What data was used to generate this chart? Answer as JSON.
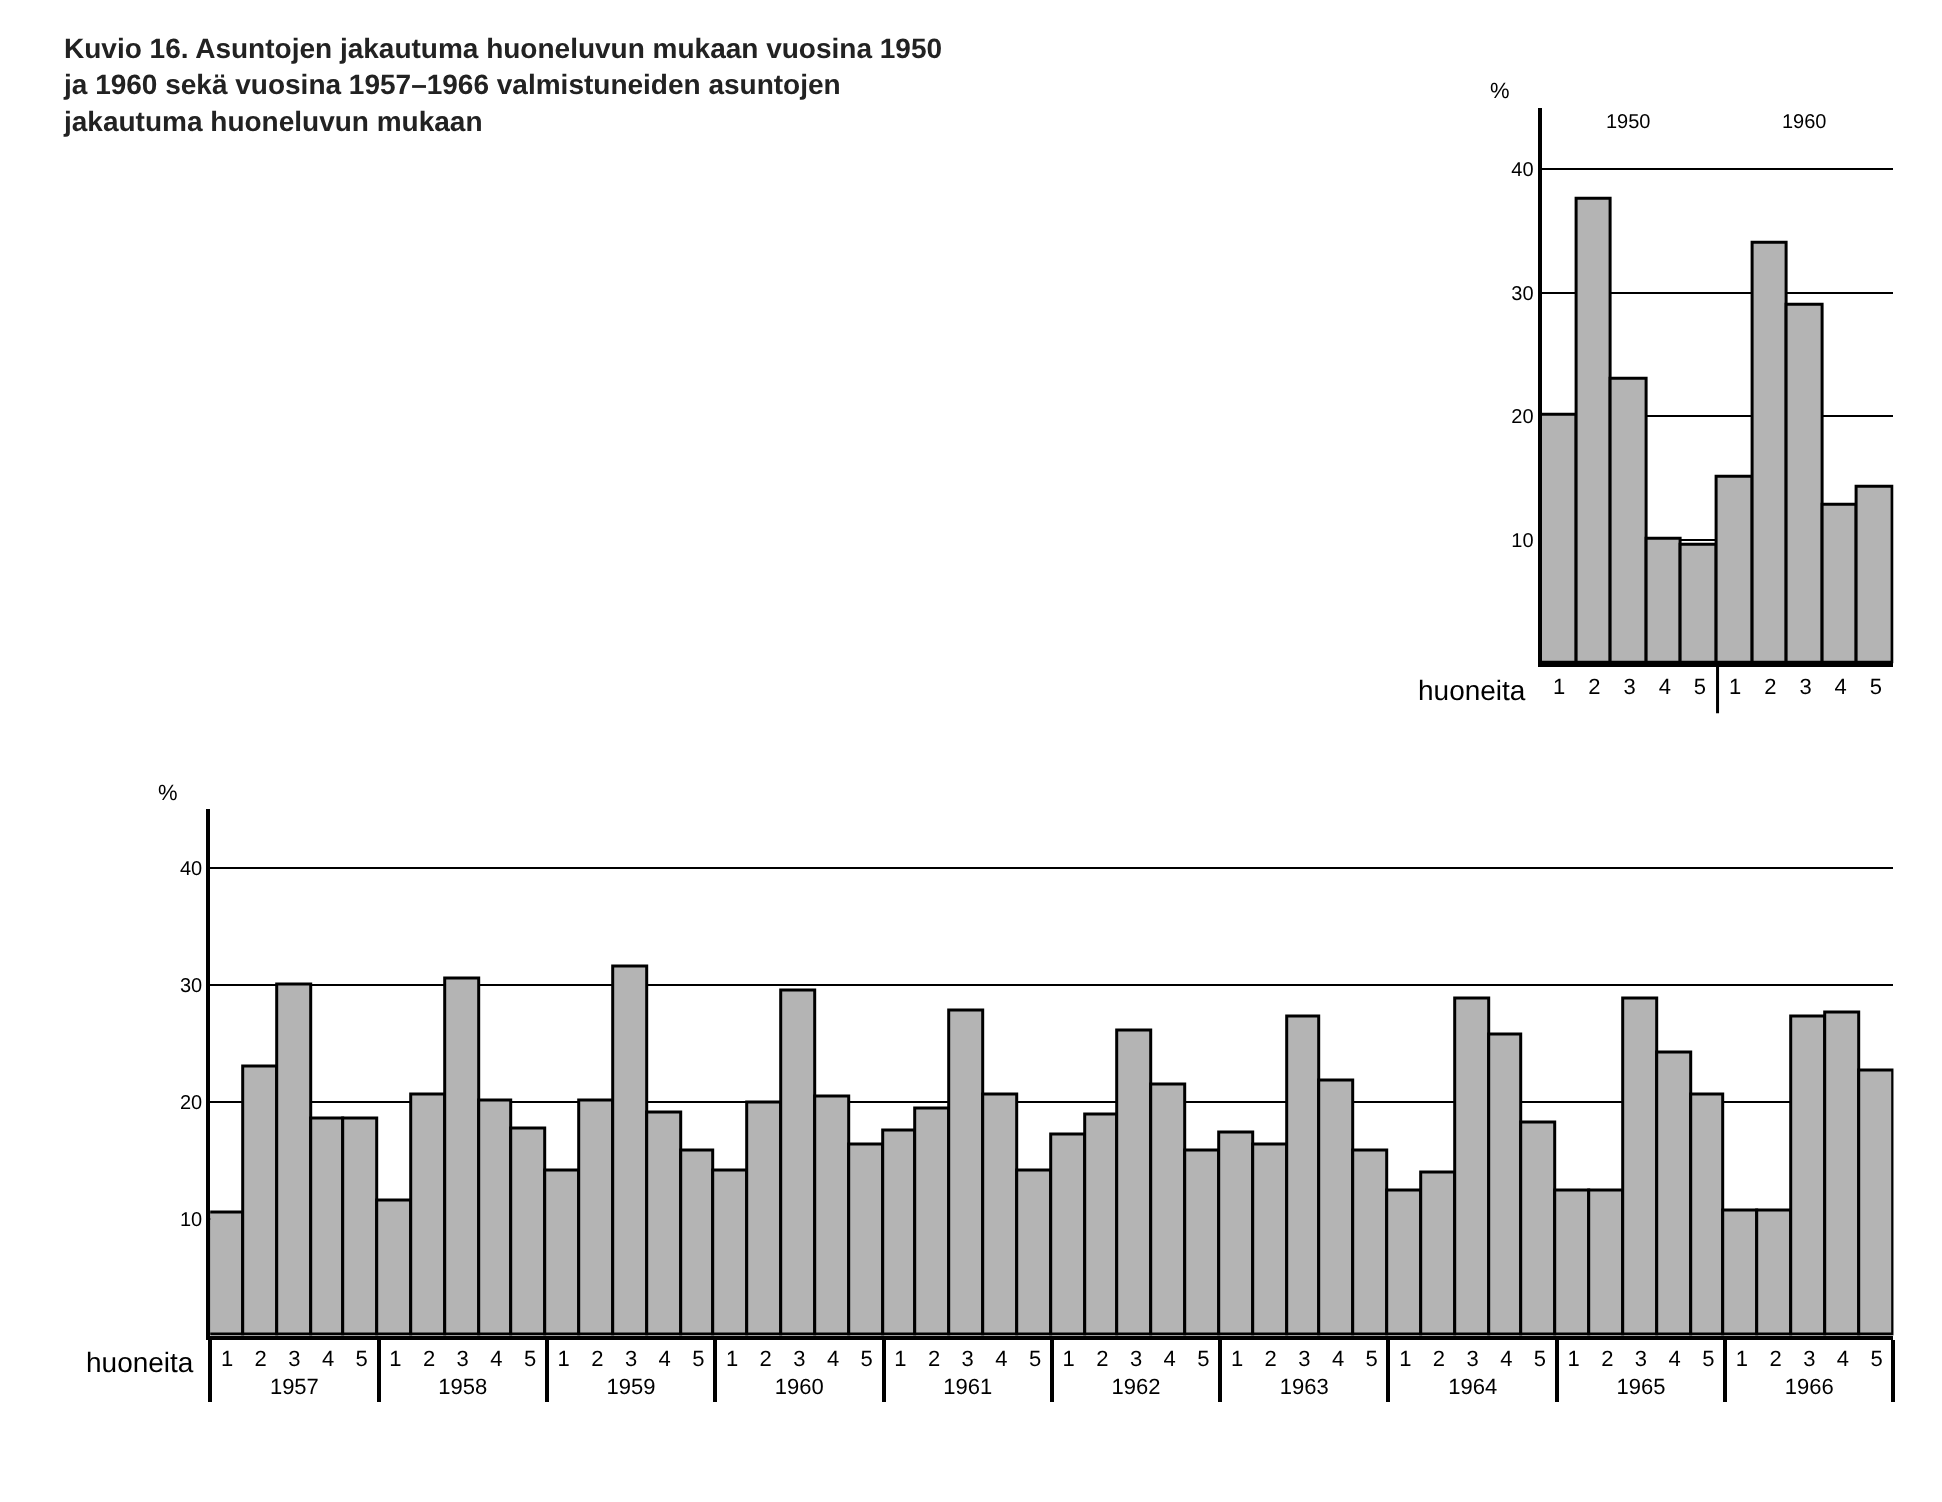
{
  "chart_data": [
    {
      "type": "bar",
      "ylabel": "%",
      "xlabel": "huoneita",
      "categories": [
        "1",
        "2",
        "3",
        "4",
        "5",
        "1",
        "2",
        "3",
        "4",
        "5"
      ],
      "values": [
        20,
        37.6,
        23,
        10,
        9.5,
        15,
        34,
        29,
        12.8,
        14.3
      ],
      "color": "#b4b4b4",
      "annotations": [
        "1950",
        "1960"
      ],
      "ylim": [
        0,
        45
      ],
      "yticks": [
        10,
        20,
        30,
        40
      ],
      "grid": "y"
    },
    {
      "type": "bar",
      "ylabel": "%",
      "xlabel": "huoneita",
      "categories": [
        "1",
        "2",
        "3",
        "4",
        "5",
        "1",
        "2",
        "3",
        "4",
        "5",
        "1",
        "2",
        "3",
        "4",
        "5",
        "1",
        "2",
        "3",
        "4",
        "5",
        "1",
        "2",
        "3",
        "4",
        "5",
        "1",
        "2",
        "3",
        "4",
        "5",
        "1",
        "2",
        "3",
        "4",
        "5",
        "1",
        "2",
        "3",
        "4",
        "5",
        "1",
        "2",
        "3",
        "4",
        "5",
        "1",
        "2",
        "3",
        "4",
        "5"
      ],
      "values": [
        10.5,
        23,
        30,
        18.5,
        18.5,
        11.5,
        20.5,
        30.5,
        20,
        17.7,
        14,
        20,
        31.5,
        19,
        15.7,
        14,
        19.8,
        29.5,
        20.3,
        16.2,
        17.5,
        19.3,
        27.8,
        20.5,
        14,
        17.2,
        18.9,
        26,
        21.4,
        15.7,
        17.3,
        16.3,
        27.2,
        21.8,
        15.7,
        12.4,
        13.8,
        28.7,
        25.7,
        18.2,
        12.3,
        12.3,
        28.7,
        24.2,
        20.6,
        10.7,
        10.7,
        27.2,
        27.6,
        22.6
      ],
      "color": "#b4b4b4",
      "annotations": [
        "1957",
        "1958",
        "1959",
        "1960",
        "1961",
        "1962",
        "1963",
        "1964",
        "1965",
        "1966"
      ],
      "ylim": [
        0,
        45
      ],
      "yticks": [
        10,
        20,
        30,
        40
      ],
      "grid": "y",
      "title": "Kuvio 16. Asuntojen jakautuma huoneluvun mukaan vuosina 1950 ja 1960 sekä vuosina 1957–1966 valmistuneiden asuntojen jakautuma huoneluvun mukaan"
    }
  ]
}
